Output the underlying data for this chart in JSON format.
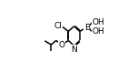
{
  "bg_color": "#ffffff",
  "line_color": "#000000",
  "lw": 1.1,
  "fs": 6.5,
  "figsize": [
    1.51,
    0.79
  ],
  "dpi": 100,
  "xlim": [
    -0.15,
    0.85
  ],
  "ylim": [
    0.05,
    0.98
  ]
}
